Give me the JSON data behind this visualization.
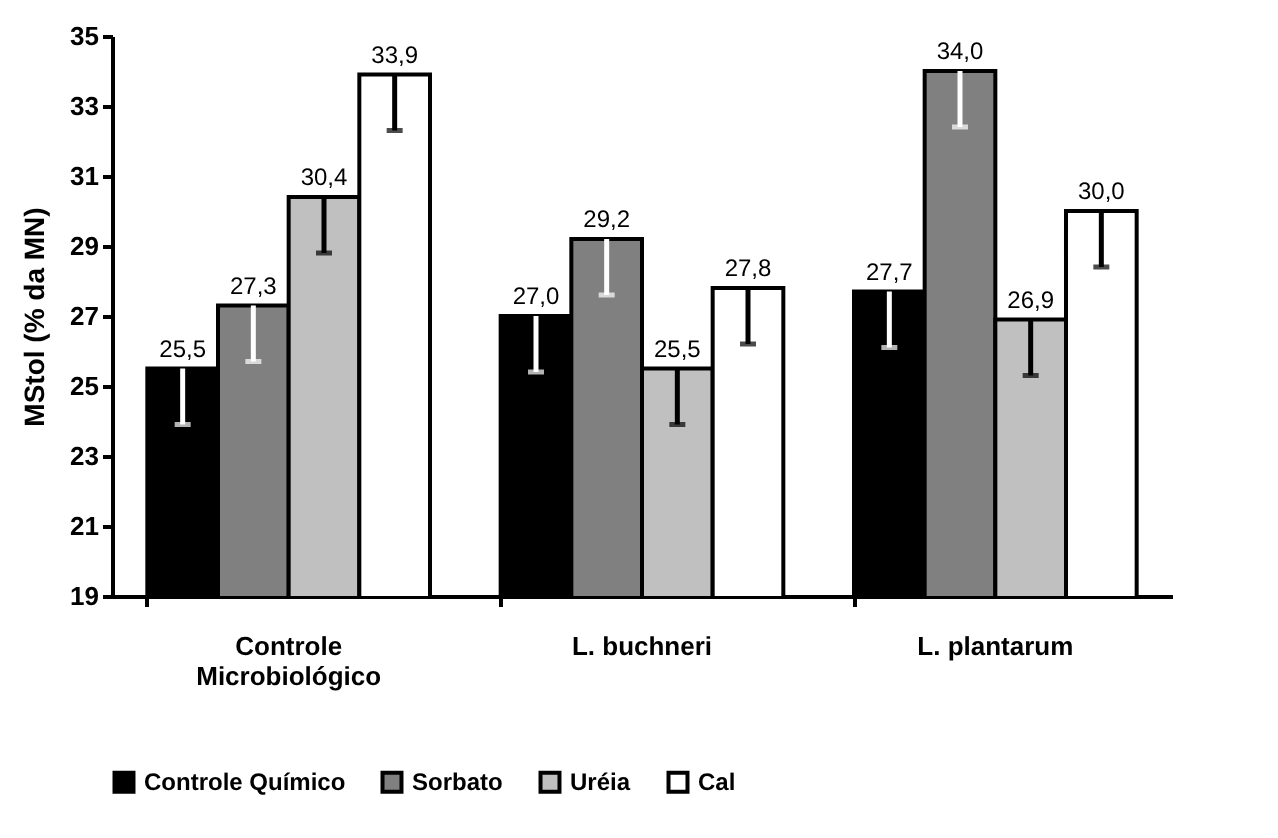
{
  "chart_data": {
    "type": "bar",
    "ylabel": "MStol (% da MN)",
    "categories": [
      "Controle Microbiológico",
      "L. buchneri",
      "L. plantarum"
    ],
    "ylim": [
      19,
      35
    ],
    "yticks": [
      19,
      21,
      23,
      25,
      27,
      29,
      31,
      33,
      35
    ],
    "grid": false,
    "legend": "bottom",
    "series": [
      {
        "name": "Controle Químico",
        "color": "#000000",
        "values": [
          25.5,
          27.0,
          27.7
        ],
        "value_labels": [
          "25,5",
          "27,0",
          "27,7"
        ],
        "errors": [
          [
            23.9,
            25.5
          ],
          [
            25.4,
            27.0
          ],
          [
            26.1,
            27.7
          ]
        ]
      },
      {
        "name": "Sorbato",
        "color": "#808080",
        "values": [
          27.3,
          29.2,
          34.0
        ],
        "value_labels": [
          "27,3",
          "29,2",
          "34,0"
        ],
        "errors": [
          [
            25.7,
            27.3
          ],
          [
            27.6,
            29.2
          ],
          [
            32.4,
            34.0
          ]
        ]
      },
      {
        "name": "Uréia",
        "color": "#c0c0c0",
        "values": [
          30.4,
          25.5,
          26.9
        ],
        "value_labels": [
          "30,4",
          "25,5",
          "26,9"
        ],
        "errors": [
          [
            28.8,
            30.4
          ],
          [
            23.9,
            25.5
          ],
          [
            25.3,
            26.9
          ]
        ]
      },
      {
        "name": "Cal",
        "color": "#ffffff",
        "values": [
          33.9,
          27.8,
          30.0
        ],
        "value_labels": [
          "33,9",
          "27,8",
          "30,0"
        ],
        "errors": [
          [
            32.3,
            33.9
          ],
          [
            26.2,
            27.8
          ],
          [
            28.4,
            30.0
          ]
        ]
      }
    ]
  }
}
